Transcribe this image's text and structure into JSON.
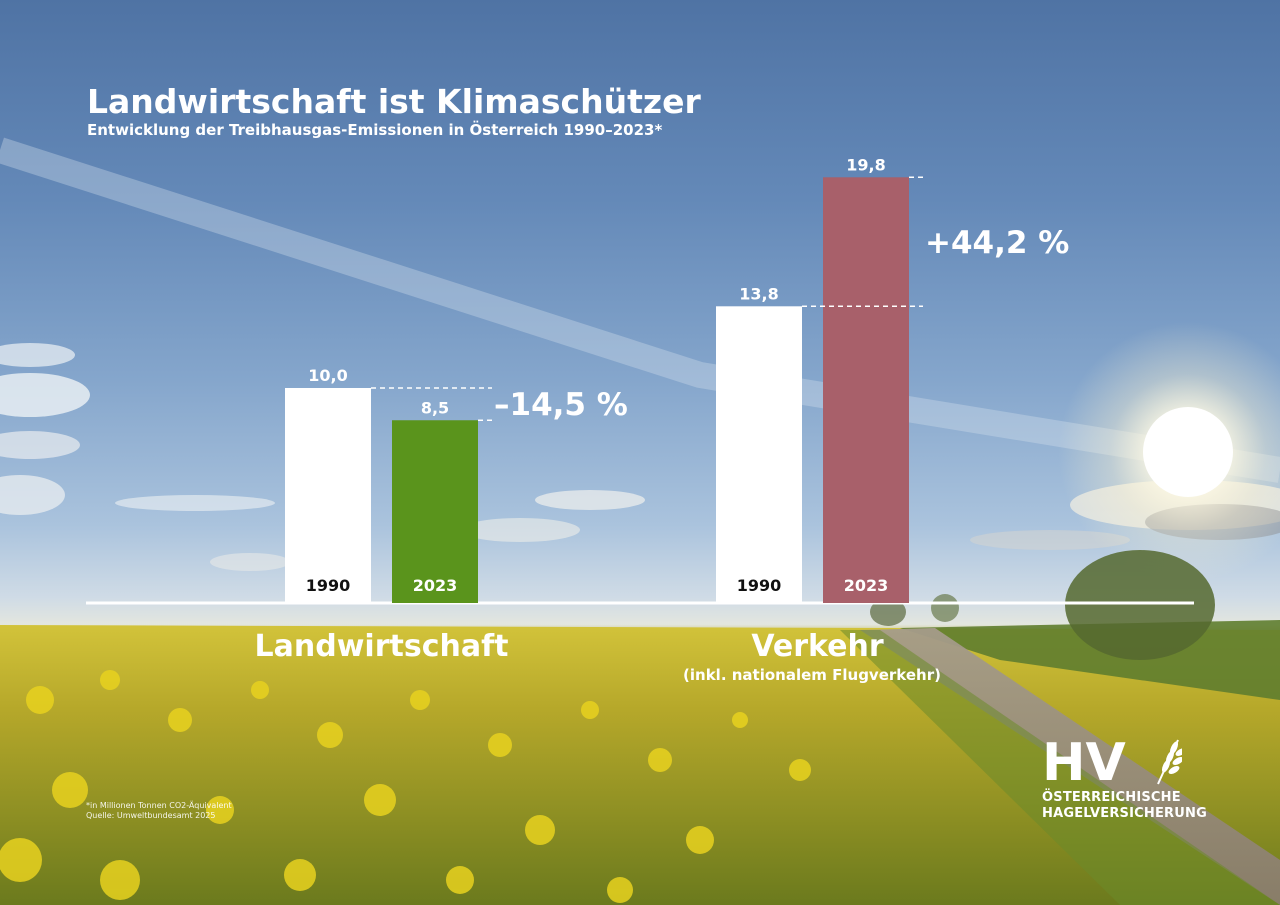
{
  "title": "Landwirtschaft ist Klimaschützer",
  "subtitle": "Entwicklung der Treibhausgas-Emissionen in Österreich 1990–2023*",
  "footnote": {
    "line1": "*in Millionen Tonnen CO2-Äquivalent",
    "line2": "Quelle: Umweltbundesamt 2025"
  },
  "logo": {
    "mark": "HV",
    "line1": "ÖSTERREICHISCHE",
    "line2": "HAGELVERSICHERUNG",
    "icon": "wheat-ear-icon"
  },
  "chart_data": {
    "type": "bar",
    "unit": "Millionen Tonnen CO2-Äquivalent",
    "categories": [
      "1990",
      "2023"
    ],
    "grid": false,
    "legend": "none",
    "groups": [
      {
        "name": "Landwirtschaft",
        "sublabel": "",
        "values": [
          10.0,
          8.5
        ],
        "value_labels": [
          "10,0",
          "8,5"
        ],
        "change_label": "–14,5 %",
        "colors": [
          "#ffffff",
          "#5a941c"
        ]
      },
      {
        "name": "Verkehr",
        "sublabel": "(inkl. nationalem Flugverkehr)",
        "values": [
          13.8,
          19.8
        ],
        "value_labels": [
          "13,8",
          "19,8"
        ],
        "change_label": "+44,2 %",
        "colors": [
          "#ffffff",
          "#a8606a"
        ]
      }
    ]
  }
}
